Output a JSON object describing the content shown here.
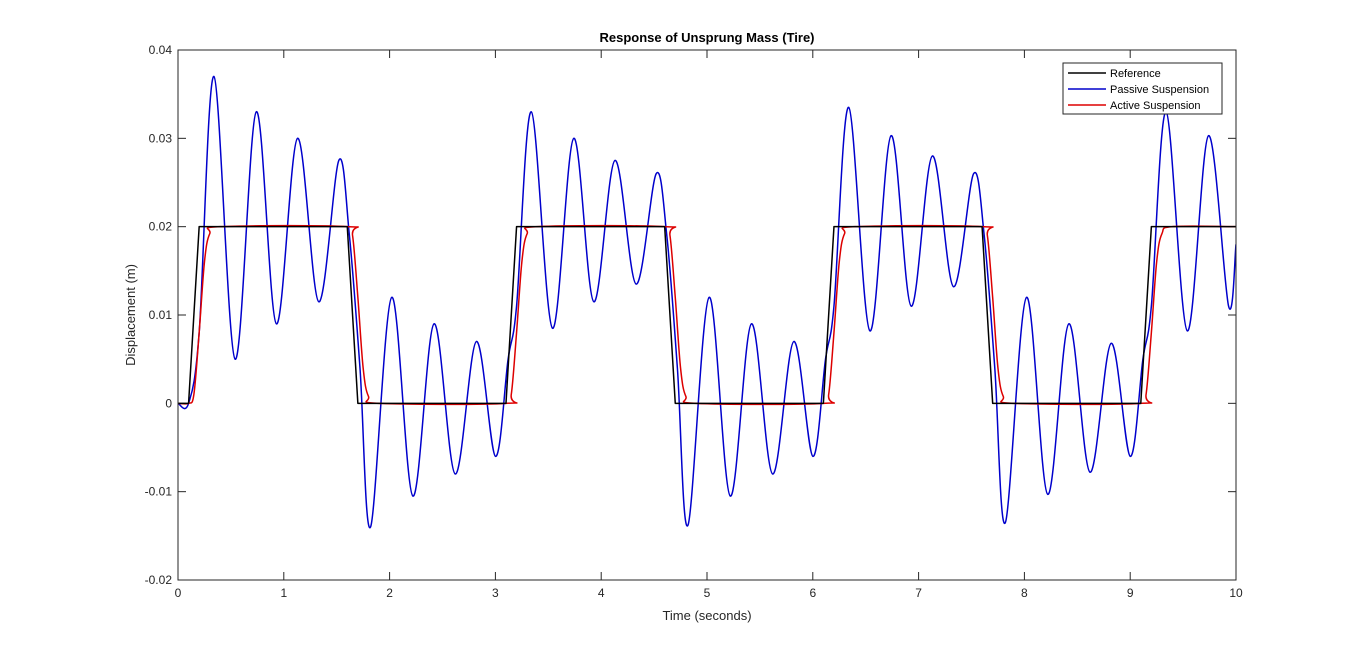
{
  "chart_data": {
    "type": "line",
    "title": "Response of Unsprung Mass (Tire)",
    "xlabel": "Time (seconds)",
    "ylabel": "Displacement (m)",
    "xlim": [
      0,
      10
    ],
    "ylim": [
      -0.02,
      0.04
    ],
    "xticks": [
      0,
      1,
      2,
      3,
      4,
      5,
      6,
      7,
      8,
      9,
      10
    ],
    "xtick_labels": [
      "0",
      "1",
      "2",
      "3",
      "4",
      "5",
      "6",
      "7",
      "8",
      "9",
      "10"
    ],
    "yticks": [
      -0.02,
      -0.01,
      0,
      0.01,
      0.02,
      0.03,
      0.04
    ],
    "ytick_labels": [
      "-0.02",
      "-0.01",
      "0",
      "0.01",
      "0.02",
      "0.03",
      "0.04"
    ],
    "grid": false,
    "legend_position": "top-right",
    "series": [
      {
        "name": "Reference",
        "color": "#000000",
        "x": [
          0,
          0.1,
          0.2,
          1.6,
          1.7,
          3.1,
          3.2,
          4.6,
          4.7,
          6.1,
          6.2,
          7.6,
          7.7,
          9.1,
          9.2,
          10
        ],
        "y": [
          0,
          0,
          0.02,
          0.02,
          0,
          0,
          0.02,
          0.02,
          0,
          0,
          0.02,
          0.02,
          0,
          0,
          0.02,
          0.02
        ]
      },
      {
        "name": "Passive Suspension",
        "color": "#0000cc",
        "x": [
          0,
          0.1,
          0.2,
          0.34,
          0.54,
          0.74,
          0.93,
          1.13,
          1.33,
          1.52,
          1.62,
          1.72,
          1.82,
          2.02,
          2.22,
          2.42,
          2.62,
          2.82,
          3.0,
          3.12,
          3.2,
          3.34,
          3.54,
          3.74,
          3.93,
          4.13,
          4.33,
          4.52,
          4.62,
          4.72,
          4.82,
          5.02,
          5.22,
          5.42,
          5.62,
          5.82,
          6.0,
          6.12,
          6.2,
          6.34,
          6.54,
          6.74,
          6.93,
          7.13,
          7.33,
          7.52,
          7.62,
          7.72,
          7.82,
          8.02,
          8.22,
          8.42,
          8.62,
          8.82,
          9.0,
          9.12,
          9.2,
          9.34,
          9.54,
          9.74,
          9.93,
          10.0
        ],
        "y": [
          0,
          0,
          0.008,
          0.037,
          0.005,
          0.033,
          0.009,
          0.03,
          0.0115,
          0.0275,
          0.019,
          0.004,
          -0.014,
          0.012,
          -0.0105,
          0.009,
          -0.008,
          0.007,
          -0.006,
          0.005,
          0.011,
          0.033,
          0.0085,
          0.03,
          0.0115,
          0.0275,
          0.0135,
          0.026,
          0.019,
          0.004,
          -0.0138,
          0.012,
          -0.0105,
          0.009,
          -0.008,
          0.007,
          -0.006,
          0.005,
          0.011,
          0.0335,
          0.0082,
          0.0303,
          0.011,
          0.028,
          0.0132,
          0.026,
          0.019,
          0.004,
          -0.0135,
          0.012,
          -0.0103,
          0.009,
          -0.0078,
          0.0068,
          -0.006,
          0.005,
          0.011,
          0.033,
          0.0082,
          0.0303,
          0.011,
          0.018
        ]
      },
      {
        "name": "Active Suspension",
        "color": "#dd0000",
        "x": [
          0,
          0.1,
          0.15,
          0.2,
          0.25,
          0.3,
          0.4,
          1.6,
          1.65,
          1.7,
          1.75,
          1.8,
          1.9,
          3.1,
          3.15,
          3.2,
          3.25,
          3.3,
          3.4,
          4.6,
          4.65,
          4.7,
          4.75,
          4.8,
          4.9,
          6.1,
          6.15,
          6.2,
          6.25,
          6.3,
          6.4,
          7.6,
          7.65,
          7.7,
          7.75,
          7.8,
          7.9,
          9.1,
          9.15,
          9.2,
          9.25,
          9.3,
          9.4,
          10
        ],
        "y": [
          0,
          0,
          0.001,
          0.008,
          0.016,
          0.0192,
          0.02,
          0.02,
          0.019,
          0.012,
          0.004,
          0.0008,
          0,
          0,
          0.001,
          0.008,
          0.016,
          0.0192,
          0.02,
          0.02,
          0.019,
          0.012,
          0.004,
          0.0008,
          0,
          0,
          0.001,
          0.008,
          0.016,
          0.0192,
          0.02,
          0.02,
          0.019,
          0.012,
          0.004,
          0.0008,
          0,
          0,
          0.001,
          0.008,
          0.016,
          0.0192,
          0.02,
          0.02
        ]
      }
    ]
  }
}
